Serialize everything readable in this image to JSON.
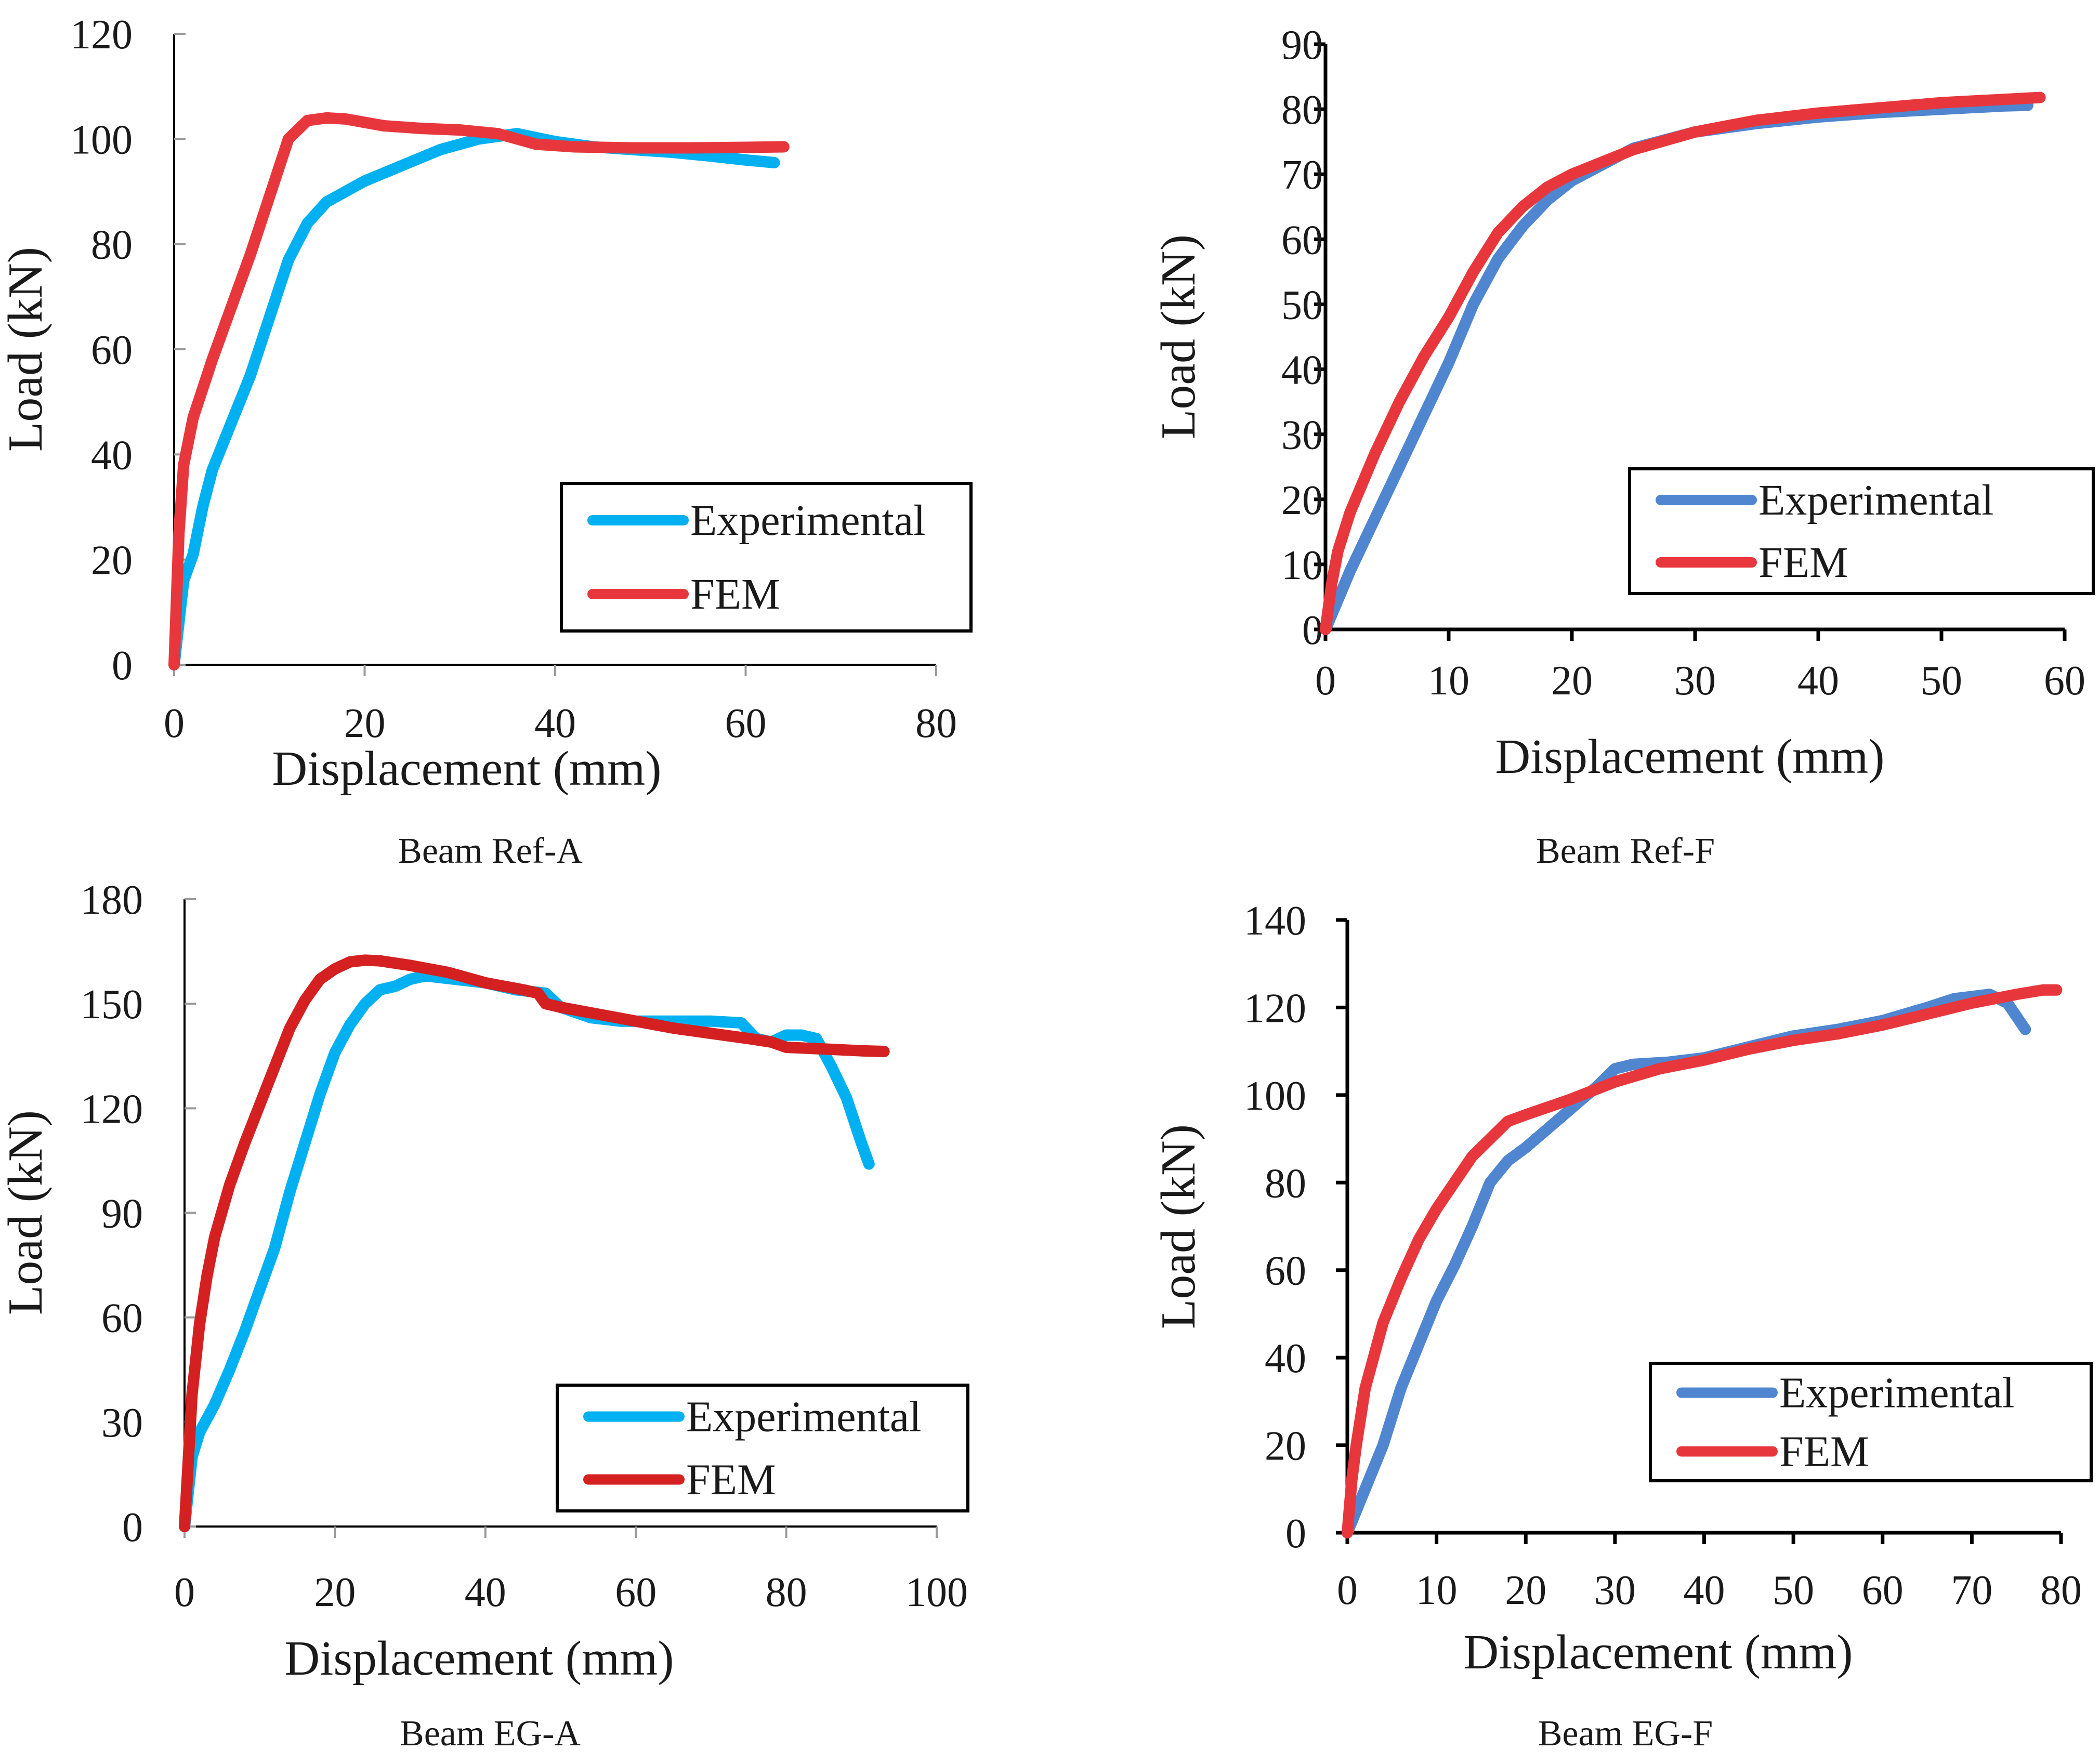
{
  "chart_data": [
    {
      "type": "line",
      "caption": "Beam Ref-A",
      "xlabel": "Displacement (mm)",
      "ylabel": "Load (kN)",
      "xlim": [
        0,
        80
      ],
      "ylim": [
        0,
        120
      ],
      "xticks": [
        0,
        20,
        40,
        60,
        80
      ],
      "yticks": [
        0,
        20,
        40,
        60,
        80,
        100,
        120
      ],
      "axis_style": "light",
      "legend_position": "bottom-right",
      "series": [
        {
          "name": "Experimental",
          "color": "#00b0f0",
          "points": [
            [
              0,
              0
            ],
            [
              1,
              16
            ],
            [
              2,
              21
            ],
            [
              3,
              30
            ],
            [
              4,
              37
            ],
            [
              6,
              46
            ],
            [
              8,
              55
            ],
            [
              10,
              66
            ],
            [
              12,
              77
            ],
            [
              14,
              84
            ],
            [
              16,
              88
            ],
            [
              20,
              92
            ],
            [
              24,
              95
            ],
            [
              28,
              98
            ],
            [
              32,
              100
            ],
            [
              36,
              101
            ],
            [
              40,
              99.5
            ],
            [
              44,
              98.5
            ],
            [
              48,
              98
            ],
            [
              52,
              97.5
            ],
            [
              56,
              96.8
            ],
            [
              60,
              96
            ],
            [
              63,
              95.5
            ]
          ]
        },
        {
          "name": "FEM",
          "color": "#e8373c",
          "points": [
            [
              0,
              0
            ],
            [
              0.5,
              25
            ],
            [
              1,
              38
            ],
            [
              2,
              47
            ],
            [
              4,
              58
            ],
            [
              6,
              68
            ],
            [
              8,
              78
            ],
            [
              10,
              89
            ],
            [
              12,
              100
            ],
            [
              14,
              103.5
            ],
            [
              16,
              104
            ],
            [
              18,
              103.8
            ],
            [
              22,
              102.5
            ],
            [
              26,
              102
            ],
            [
              30,
              101.7
            ],
            [
              34,
              101
            ],
            [
              36,
              100
            ],
            [
              38,
              99
            ],
            [
              42,
              98.5
            ],
            [
              48,
              98.3
            ],
            [
              54,
              98.3
            ],
            [
              60,
              98.4
            ],
            [
              64,
              98.5
            ]
          ]
        }
      ]
    },
    {
      "type": "line",
      "caption": "Beam Ref-F",
      "xlabel": "Displacement (mm)",
      "ylabel": "Load (kN)",
      "xlim": [
        0,
        60
      ],
      "ylim": [
        0,
        90
      ],
      "xticks": [
        0,
        10,
        20,
        30,
        40,
        50,
        60
      ],
      "yticks": [
        0,
        10,
        20,
        30,
        40,
        50,
        60,
        70,
        80,
        90
      ],
      "axis_style": "bold",
      "legend_position": "bottom-right",
      "series": [
        {
          "name": "Experimental",
          "color": "#4f86cf",
          "points": [
            [
              0,
              0
            ],
            [
              2,
              9
            ],
            [
              4,
              17
            ],
            [
              6,
              25
            ],
            [
              8,
              33
            ],
            [
              10,
              41
            ],
            [
              12,
              50
            ],
            [
              14,
              57
            ],
            [
              16,
              62
            ],
            [
              18,
              66
            ],
            [
              20,
              69
            ],
            [
              25,
              74
            ],
            [
              30,
              76.5
            ],
            [
              35,
              77.8
            ],
            [
              40,
              78.8
            ],
            [
              45,
              79.5
            ],
            [
              50,
              80
            ],
            [
              55,
              80.5
            ],
            [
              57,
              80.6
            ]
          ]
        },
        {
          "name": "FEM",
          "color": "#e8373c",
          "points": [
            [
              0,
              0
            ],
            [
              0.5,
              7
            ],
            [
              1,
              12
            ],
            [
              2,
              18
            ],
            [
              4,
              27
            ],
            [
              6,
              35
            ],
            [
              8,
              42
            ],
            [
              10,
              48
            ],
            [
              12,
              55
            ],
            [
              14,
              61
            ],
            [
              16,
              65
            ],
            [
              18,
              68
            ],
            [
              20,
              70
            ],
            [
              25,
              73.8
            ],
            [
              30,
              76.5
            ],
            [
              35,
              78.3
            ],
            [
              40,
              79.4
            ],
            [
              45,
              80.2
            ],
            [
              50,
              81
            ],
            [
              55,
              81.5
            ],
            [
              58,
              81.8
            ]
          ]
        }
      ]
    },
    {
      "type": "line",
      "caption": "Beam EG-A",
      "xlabel": "Displacement (mm)",
      "ylabel": "Load (kN)",
      "xlim": [
        0,
        100
      ],
      "ylim": [
        0,
        180
      ],
      "xticks": [
        0,
        20,
        40,
        60,
        80,
        100
      ],
      "yticks": [
        0,
        30,
        60,
        90,
        120,
        150,
        180
      ],
      "axis_style": "light",
      "legend_position": "bottom-right",
      "series": [
        {
          "name": "Experimental",
          "color": "#00b0f0",
          "points": [
            [
              0,
              0
            ],
            [
              1,
              20
            ],
            [
              2,
              27
            ],
            [
              4,
              35
            ],
            [
              6,
              45
            ],
            [
              8,
              56
            ],
            [
              10,
              68
            ],
            [
              12,
              80
            ],
            [
              14,
              96
            ],
            [
              16,
              110
            ],
            [
              18,
              124
            ],
            [
              20,
              136
            ],
            [
              22,
              144
            ],
            [
              24,
              150
            ],
            [
              26,
              154
            ],
            [
              28,
              155
            ],
            [
              30,
              157
            ],
            [
              32,
              158
            ],
            [
              36,
              157
            ],
            [
              40,
              156
            ],
            [
              44,
              154
            ],
            [
              48,
              153
            ],
            [
              50,
              149
            ],
            [
              54,
              146
            ],
            [
              58,
              145
            ],
            [
              62,
              145
            ],
            [
              66,
              145
            ],
            [
              70,
              145
            ],
            [
              74,
              144.5
            ],
            [
              76,
              140
            ],
            [
              78,
              139
            ],
            [
              80,
              141
            ],
            [
              82,
              141
            ],
            [
              84,
              140
            ],
            [
              86,
              132
            ],
            [
              88,
              123
            ],
            [
              90,
              110
            ],
            [
              91,
              104
            ]
          ]
        },
        {
          "name": "FEM",
          "color": "#d42020",
          "points": [
            [
              0,
              0
            ],
            [
              1,
              38
            ],
            [
              2,
              58
            ],
            [
              3,
              72
            ],
            [
              4,
              83
            ],
            [
              6,
              98
            ],
            [
              8,
              110
            ],
            [
              10,
              121
            ],
            [
              12,
              132
            ],
            [
              14,
              143
            ],
            [
              16,
              151
            ],
            [
              18,
              157
            ],
            [
              20,
              160
            ],
            [
              22,
              162
            ],
            [
              24,
              162.5
            ],
            [
              26,
              162.3
            ],
            [
              30,
              161
            ],
            [
              35,
              159
            ],
            [
              40,
              156
            ],
            [
              45,
              154
            ],
            [
              47,
              153
            ],
            [
              48,
              150
            ],
            [
              50,
              149
            ],
            [
              55,
              147
            ],
            [
              60,
              145
            ],
            [
              65,
              143
            ],
            [
              70,
              141.5
            ],
            [
              75,
              140
            ],
            [
              78,
              139
            ],
            [
              80,
              137.5
            ],
            [
              85,
              137
            ],
            [
              90,
              136.5
            ],
            [
              93,
              136.3
            ]
          ]
        }
      ]
    },
    {
      "type": "line",
      "caption": "Beam EG-F",
      "xlabel": "Displacement (mm)",
      "ylabel": "Load (kN)",
      "xlim": [
        0,
        80
      ],
      "ylim": [
        0,
        140
      ],
      "xticks": [
        0,
        10,
        20,
        30,
        40,
        50,
        60,
        70,
        80
      ],
      "yticks": [
        0,
        20,
        40,
        60,
        80,
        100,
        120,
        140
      ],
      "axis_style": "bold",
      "legend_position": "bottom-right",
      "series": [
        {
          "name": "Experimental",
          "color": "#4f86cf",
          "points": [
            [
              0,
              0
            ],
            [
              2,
              10
            ],
            [
              4,
              20
            ],
            [
              6,
              33
            ],
            [
              8,
              43
            ],
            [
              10,
              53
            ],
            [
              12,
              61
            ],
            [
              14,
              70
            ],
            [
              16,
              80
            ],
            [
              18,
              85
            ],
            [
              20,
              88
            ],
            [
              24,
              95
            ],
            [
              28,
              102
            ],
            [
              30,
              106
            ],
            [
              32,
              107
            ],
            [
              36,
              107.5
            ],
            [
              40,
              108.5
            ],
            [
              45,
              111
            ],
            [
              50,
              113.5
            ],
            [
              55,
              115
            ],
            [
              60,
              117
            ],
            [
              65,
              120
            ],
            [
              68,
              122
            ],
            [
              72,
              123
            ],
            [
              74,
              121
            ],
            [
              76,
              115
            ]
          ]
        },
        {
          "name": "FEM",
          "color": "#e8373c",
          "points": [
            [
              0,
              0
            ],
            [
              0.5,
              12
            ],
            [
              1,
              20
            ],
            [
              2,
              33
            ],
            [
              4,
              48
            ],
            [
              6,
              58
            ],
            [
              8,
              67
            ],
            [
              10,
              74
            ],
            [
              12,
              80
            ],
            [
              14,
              86
            ],
            [
              16,
              90
            ],
            [
              18,
              94
            ],
            [
              20,
              95.5
            ],
            [
              25,
              99
            ],
            [
              30,
              103
            ],
            [
              35,
              106
            ],
            [
              40,
              108
            ],
            [
              45,
              110.5
            ],
            [
              50,
              112.5
            ],
            [
              55,
              114
            ],
            [
              60,
              116
            ],
            [
              65,
              118.5
            ],
            [
              70,
              121
            ],
            [
              75,
              123
            ],
            [
              78,
              124
            ],
            [
              79.5,
              124
            ]
          ]
        }
      ]
    }
  ]
}
